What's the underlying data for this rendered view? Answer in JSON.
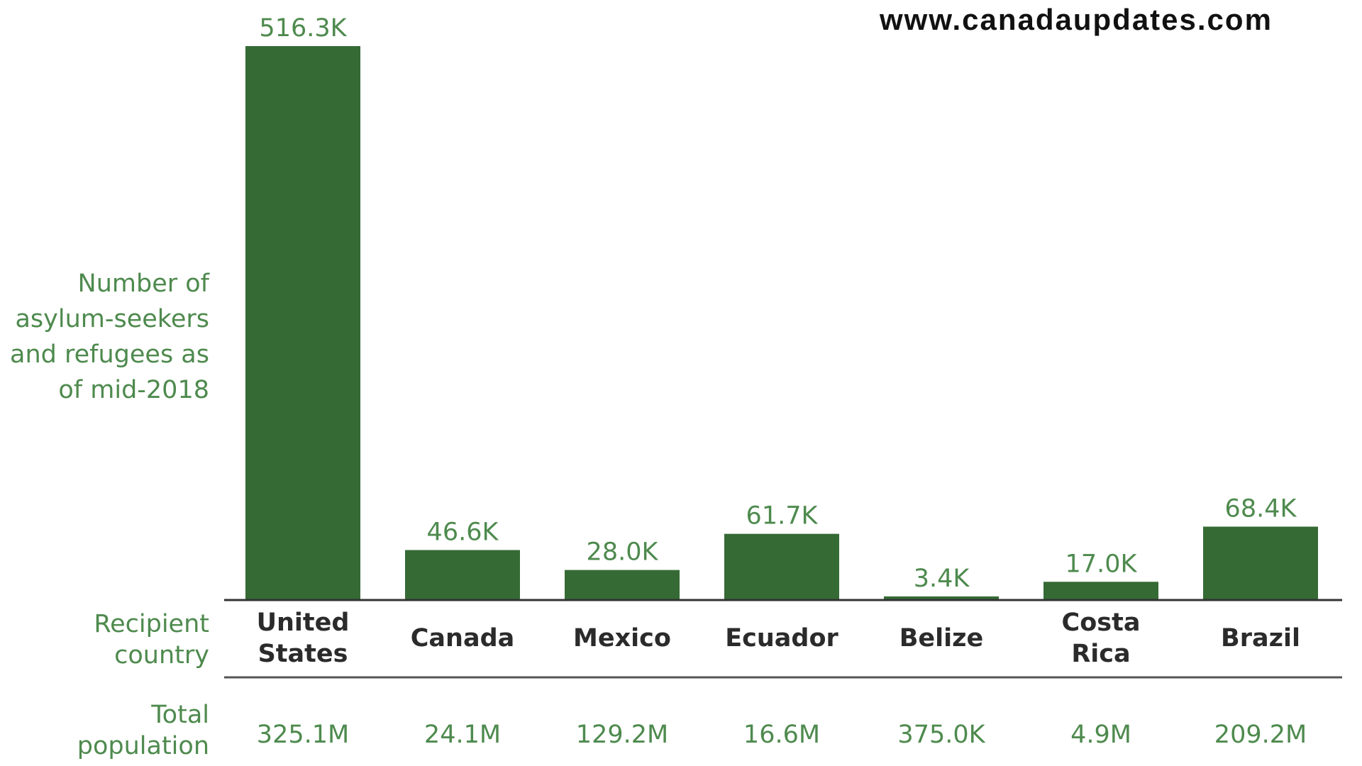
{
  "watermark": "www.canadaupdates.com",
  "labels": {
    "ylabel": "Number of\nasylum-seekers\nand refugees as\nof mid-2018",
    "country_row": "Recipient\ncountry",
    "population_row": "Total\npopulation"
  },
  "colors": {
    "bar": "#356a35",
    "label_green": "#4e8a4e",
    "axis": "#333333"
  },
  "chart_data": {
    "type": "bar",
    "categories": [
      [
        "United",
        "States"
      ],
      [
        "Canada"
      ],
      [
        "Mexico"
      ],
      [
        "Ecuador"
      ],
      [
        "Belize"
      ],
      [
        "Costa",
        "Rica"
      ],
      [
        "Brazil"
      ]
    ],
    "values": [
      516.3,
      46.6,
      28.0,
      61.7,
      3.4,
      17.0,
      68.4
    ],
    "value_labels": [
      "516.3K",
      "46.6K",
      "28.0K",
      "61.7K",
      "3.4K",
      "17.0K",
      "68.4K"
    ],
    "population_labels": [
      "325.1M",
      "24.1M",
      "129.2M",
      "16.6M",
      "375.0K",
      "4.9M",
      "209.2M"
    ],
    "ylabel": "Number of asylum-seekers and refugees as of mid-2018",
    "ylim": [
      0,
      516.3
    ],
    "grid": false
  }
}
